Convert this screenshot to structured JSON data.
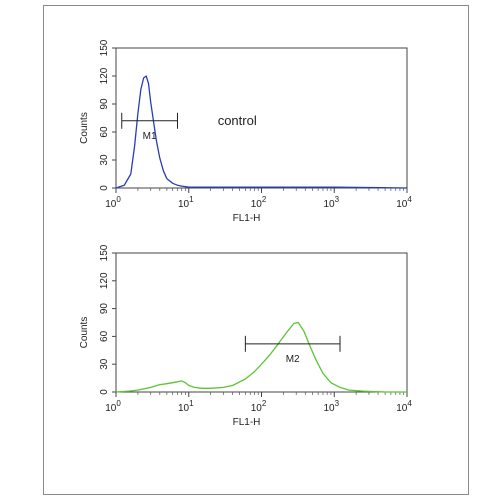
{
  "chart_data": [
    {
      "type": "line",
      "name": "top-histogram",
      "xlabel": "FL1-H",
      "ylabel": "Counts",
      "x_scale": "log",
      "xlim": [
        1,
        10000
      ],
      "ylim": [
        0,
        150
      ],
      "x_ticks": [
        {
          "value": 1,
          "base": "10",
          "exp": "0"
        },
        {
          "value": 10,
          "base": "10",
          "exp": "1"
        },
        {
          "value": 100,
          "base": "10",
          "exp": "2"
        },
        {
          "value": 1000,
          "base": "10",
          "exp": "3"
        },
        {
          "value": 10000,
          "base": "10",
          "exp": "4"
        }
      ],
      "y_ticks": [
        0,
        30,
        60,
        90,
        120,
        150
      ],
      "y_tick_labels": [
        "0",
        "30",
        "60",
        "90",
        "120",
        "150"
      ],
      "line_color": "#2a3db5",
      "annotation": {
        "text": "control",
        "x": 25,
        "y": 72
      },
      "gate": {
        "label": "M1",
        "x_start": 1.2,
        "x_end": 7,
        "y": 72
      },
      "series": [
        {
          "x": [
            1,
            1.3,
            1.6,
            1.8,
            2.0,
            2.2,
            2.4,
            2.6,
            2.8,
            3.0,
            3.3,
            3.6,
            4.0,
            4.5,
            5.0,
            6.0,
            7.0,
            8.0,
            10,
            15,
            30,
            100,
            1000,
            10000
          ],
          "y": [
            0,
            3,
            15,
            45,
            80,
            106,
            118,
            120,
            112,
            92,
            70,
            50,
            32,
            18,
            10,
            5,
            3,
            2,
            1,
            1,
            1,
            1,
            1,
            0
          ]
        }
      ]
    },
    {
      "type": "line",
      "name": "bottom-histogram",
      "xlabel": "FL1-H",
      "ylabel": "Counts",
      "x_scale": "log",
      "xlim": [
        1,
        10000
      ],
      "ylim": [
        0,
        150
      ],
      "x_ticks": [
        {
          "value": 1,
          "base": "10",
          "exp": "0"
        },
        {
          "value": 10,
          "base": "10",
          "exp": "1"
        },
        {
          "value": 100,
          "base": "10",
          "exp": "2"
        },
        {
          "value": 1000,
          "base": "10",
          "exp": "3"
        },
        {
          "value": 10000,
          "base": "10",
          "exp": "4"
        }
      ],
      "y_ticks": [
        0,
        30,
        60,
        90,
        120,
        150
      ],
      "y_tick_labels": [
        "0",
        "30",
        "60",
        "90",
        "120",
        "150"
      ],
      "line_color": "#5cc433",
      "annotation": null,
      "gate": {
        "label": "M2",
        "x_start": 60,
        "x_end": 1200,
        "y": 52
      },
      "series": [
        {
          "x": [
            1,
            1.5,
            2,
            3,
            4,
            5,
            6,
            7,
            8,
            9,
            10,
            12,
            15,
            20,
            30,
            40,
            60,
            80,
            100,
            130,
            170,
            220,
            280,
            320,
            380,
            450,
            550,
            700,
            900,
            1200,
            1600,
            2500,
            5000,
            10000
          ],
          "y": [
            0,
            1,
            2,
            5,
            8,
            9,
            10,
            11,
            12,
            10,
            7,
            5,
            4,
            4,
            5,
            7,
            14,
            22,
            30,
            40,
            52,
            64,
            74,
            75,
            66,
            52,
            36,
            20,
            10,
            5,
            2,
            1,
            0,
            0
          ]
        }
      ]
    }
  ]
}
